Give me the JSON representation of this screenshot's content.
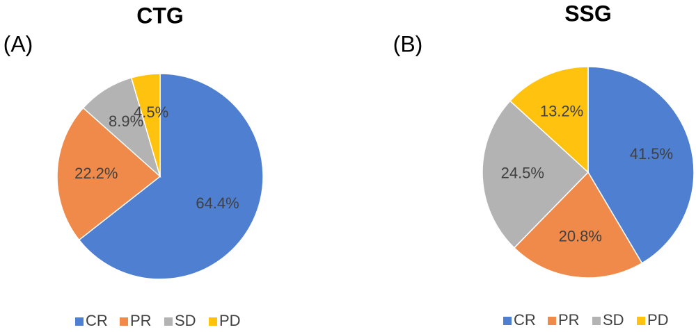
{
  "chart_data": [
    {
      "type": "pie",
      "title": "CTG",
      "label": "(A)",
      "categories": [
        "CR",
        "PR",
        "SD",
        "PD"
      ],
      "values": [
        64.4,
        22.2,
        8.9,
        4.5
      ],
      "value_labels": [
        "64.4%",
        "22.2%",
        "8.9%",
        "4.5%"
      ],
      "colors": [
        "#4f7fd0",
        "#ef8a4a",
        "#b3b3b3",
        "#ffc20e"
      ]
    },
    {
      "type": "pie",
      "title": "SSG",
      "label": "(B)",
      "categories": [
        "CR",
        "PR",
        "SD",
        "PD"
      ],
      "values": [
        41.5,
        20.8,
        24.5,
        13.2
      ],
      "value_labels": [
        "41.5%",
        "20.8%",
        "24.5%",
        "13.2%"
      ],
      "colors": [
        "#4f7fd0",
        "#ef8a4a",
        "#b3b3b3",
        "#ffc20e"
      ]
    }
  ]
}
